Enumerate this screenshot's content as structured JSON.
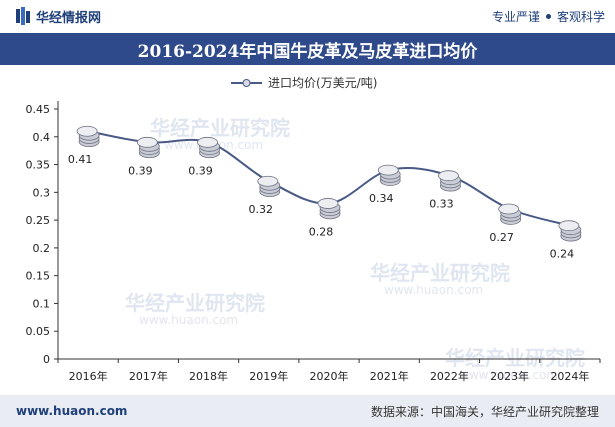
{
  "header": {
    "brand": "华经情报网",
    "tagline_left": "专业严谨",
    "tagline_right": "客观科学"
  },
  "footer": {
    "url": "www.huaon.com",
    "source": "数据来源：中国海关，华经产业研究院整理"
  },
  "watermark": {
    "text": "华经产业研究院",
    "url": "www.huaon.com"
  },
  "colors": {
    "line": "#4a5a86",
    "title_bg": "#2e4a8a"
  },
  "chart_data": {
    "type": "line",
    "title": "2016-2024年中国牛皮革及马皮革进口均价",
    "categories": [
      "2016年",
      "2017年",
      "2018年",
      "2019年",
      "2020年",
      "2021年",
      "2022年",
      "2023年",
      "2024年"
    ],
    "series": [
      {
        "name": "进口均价(万美元/吨)",
        "values": [
          0.41,
          0.39,
          0.39,
          0.32,
          0.28,
          0.34,
          0.33,
          0.27,
          0.24
        ]
      }
    ],
    "ylim": [
      0,
      0.45
    ],
    "yticks": [
      0,
      0.05,
      0.1,
      0.15,
      0.2,
      0.25,
      0.3,
      0.35,
      0.4,
      0.45
    ],
    "ytick_labels": [
      "0",
      "0.05",
      "0.1",
      "0.15",
      "0.2",
      "0.25",
      "0.3",
      "0.35",
      "0.4",
      "0.45"
    ],
    "data_labels": [
      "0.41",
      "0.39",
      "0.39",
      "0.32",
      "0.28",
      "0.34",
      "0.33",
      "0.27",
      "0.24"
    ],
    "legend_position": "top-center",
    "grid": false,
    "marker": "coin-stack"
  }
}
